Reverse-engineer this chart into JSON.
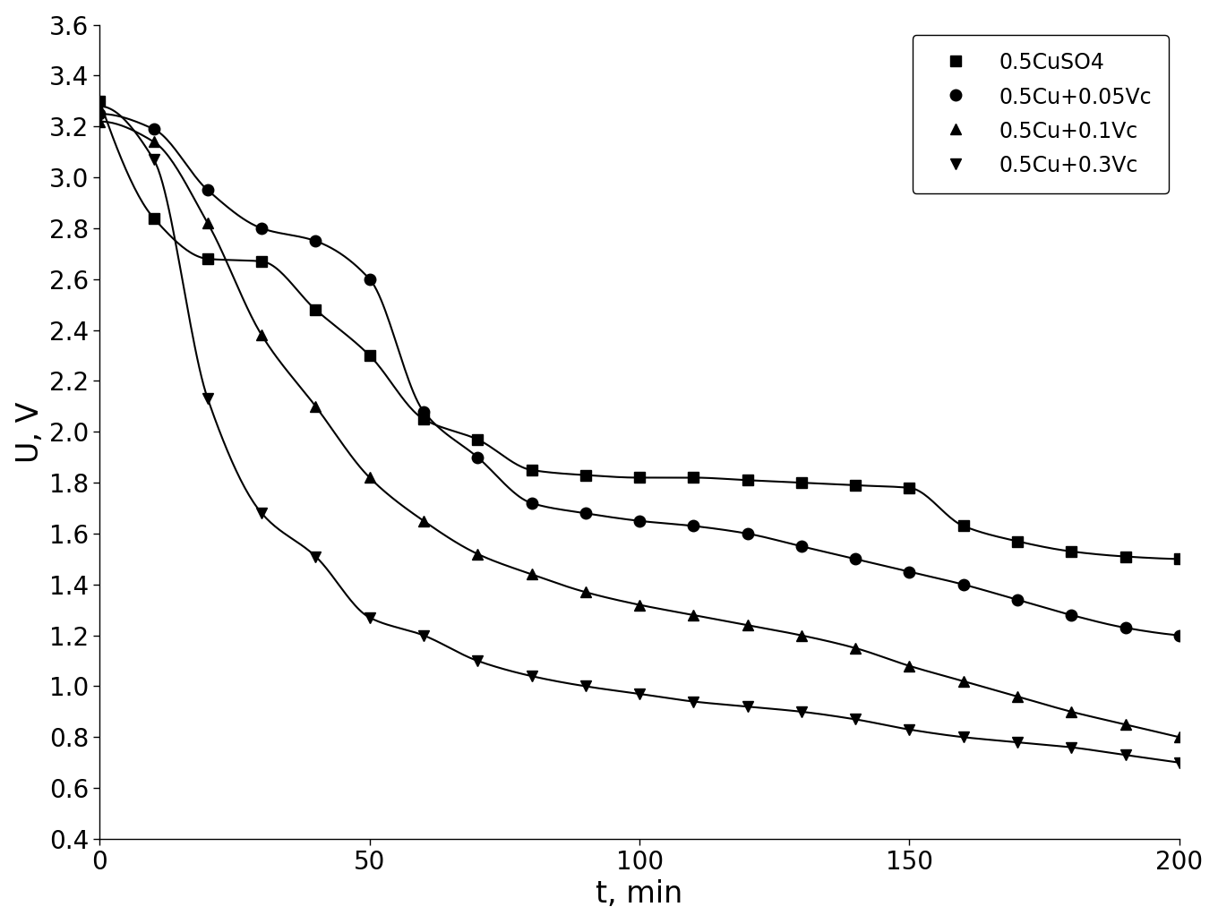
{
  "series": [
    {
      "label": "0.5CuSO4",
      "marker": "s",
      "x": [
        0,
        10,
        20,
        30,
        40,
        50,
        60,
        70,
        80,
        90,
        100,
        110,
        120,
        130,
        140,
        150,
        160,
        170,
        180,
        190,
        200
      ],
      "y": [
        3.3,
        2.84,
        2.68,
        2.67,
        2.48,
        2.3,
        2.05,
        1.97,
        1.85,
        1.83,
        1.82,
        1.82,
        1.81,
        1.8,
        1.79,
        1.78,
        1.63,
        1.57,
        1.53,
        1.51,
        1.5
      ]
    },
    {
      "label": "0.5Cu+0.05Vc",
      "marker": "o",
      "x": [
        0,
        10,
        20,
        30,
        40,
        50,
        60,
        70,
        80,
        90,
        100,
        110,
        120,
        130,
        140,
        150,
        160,
        170,
        180,
        190,
        200
      ],
      "y": [
        3.25,
        3.19,
        2.95,
        2.8,
        2.75,
        2.6,
        2.08,
        1.9,
        1.72,
        1.68,
        1.65,
        1.63,
        1.6,
        1.55,
        1.5,
        1.45,
        1.4,
        1.34,
        1.28,
        1.23,
        1.2
      ]
    },
    {
      "label": "0.5Cu+0.1Vc",
      "marker": "^",
      "x": [
        0,
        10,
        20,
        30,
        40,
        50,
        60,
        70,
        80,
        90,
        100,
        110,
        120,
        130,
        140,
        150,
        160,
        170,
        180,
        190,
        200
      ],
      "y": [
        3.22,
        3.14,
        2.82,
        2.38,
        2.1,
        1.82,
        1.65,
        1.52,
        1.44,
        1.37,
        1.32,
        1.28,
        1.24,
        1.2,
        1.15,
        1.08,
        1.02,
        0.96,
        0.9,
        0.85,
        0.8
      ]
    },
    {
      "label": "0.5Cu+0.3Vc",
      "marker": "v",
      "x": [
        0,
        10,
        20,
        30,
        40,
        50,
        60,
        70,
        80,
        90,
        100,
        110,
        120,
        130,
        140,
        150,
        160,
        170,
        180,
        190,
        200
      ],
      "y": [
        3.28,
        3.07,
        2.13,
        1.68,
        1.51,
        1.27,
        1.2,
        1.1,
        1.04,
        1.0,
        0.97,
        0.94,
        0.92,
        0.9,
        0.87,
        0.83,
        0.8,
        0.78,
        0.76,
        0.73,
        0.7
      ]
    }
  ],
  "xlabel": "t, min",
  "ylabel": "U, V",
  "xlim": [
    0,
    200
  ],
  "ylim": [
    0.4,
    3.6
  ],
  "xticks": [
    0,
    50,
    100,
    150,
    200
  ],
  "yticks": [
    0.4,
    0.6,
    0.8,
    1.0,
    1.2,
    1.4,
    1.6,
    1.8,
    2.0,
    2.2,
    2.4,
    2.6,
    2.8,
    3.0,
    3.2,
    3.4,
    3.6
  ],
  "color": "#000000",
  "linewidth": 1.5,
  "markersize": 9,
  "legend_loc": "upper right",
  "legend_fontsize": 17,
  "axis_fontsize": 24,
  "tick_fontsize": 20,
  "background_color": "#ffffff"
}
